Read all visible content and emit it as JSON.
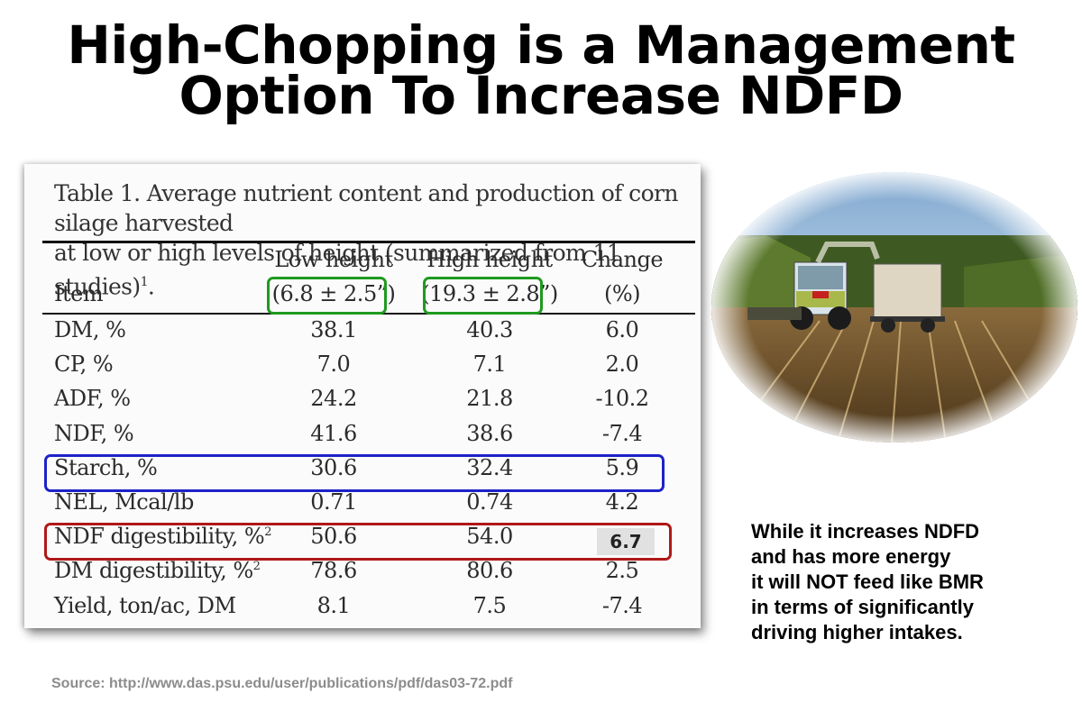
{
  "title": {
    "line1": "High-Chopping is a Management",
    "line2": "Option To Increase NDFD"
  },
  "table": {
    "caption_line1": "Table 1. Average nutrient content and production of corn silage harvested",
    "caption_line2": "at low or high levels of height (summarized from 11 studies)",
    "caption_sup": "1",
    "caption_end": ".",
    "headers": {
      "item": "Item",
      "low_label": "Low height",
      "low_range": "(6.8 ± 2.5”)",
      "high_label": "High height",
      "high_range": "(19.3 ± 2.8”)",
      "change_label": "Change",
      "change_unit": "(%)"
    },
    "rows": [
      {
        "item": "DM, %",
        "sup": "",
        "low": "38.1",
        "high": "40.3",
        "change": "6.0"
      },
      {
        "item": "CP, %",
        "sup": "",
        "low": "7.0",
        "high": "7.1",
        "change": "2.0"
      },
      {
        "item": "ADF, %",
        "sup": "",
        "low": "24.2",
        "high": "21.8",
        "change": "-10.2"
      },
      {
        "item": "NDF, %",
        "sup": "",
        "low": "41.6",
        "high": "38.6",
        "change": "-7.4"
      },
      {
        "item": "Starch, %",
        "sup": "",
        "low": "30.6",
        "high": "32.4",
        "change": "5.9"
      },
      {
        "item": "NEL, Mcal/lb",
        "sup": "",
        "low": "0.71",
        "high": "0.74",
        "change": "4.2"
      },
      {
        "item": "NDF digestibility, %",
        "sup": "2",
        "low": "50.6",
        "high": "54.0",
        "change": ""
      },
      {
        "item": "DM digestibility, %",
        "sup": "2",
        "low": "78.6",
        "high": "80.6",
        "change": "2.5"
      },
      {
        "item": "Yield, ton/ac, DM",
        "sup": "",
        "low": "8.1",
        "high": "7.5",
        "change": "-7.4"
      }
    ],
    "highlight_value": "6.7"
  },
  "note": {
    "line1": "While it increases NDFD",
    "line2": "and has more energy",
    "line3": "it will NOT feed like BMR",
    "line4": "in terms of significantly",
    "line5": "driving higher intakes."
  },
  "source": "Source:  http://www.das.psu.edu/user/publications/pdf/das03-72.pdf",
  "colors": {
    "green_box": "#1f9a1f",
    "blue_box": "#1d22c8",
    "red_box": "#b01818"
  }
}
